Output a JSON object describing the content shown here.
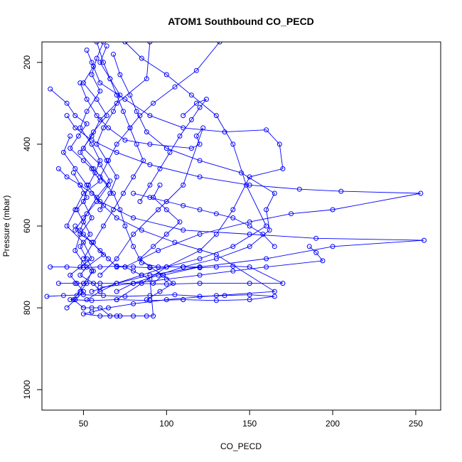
{
  "chart_data": {
    "type": "line",
    "title": "ATOM1 Southbound CO_PECD",
    "xlabel": "CO_PECD",
    "ylabel": "Pressure (mbar)",
    "xlim": [
      25,
      265
    ],
    "ylim": [
      1050,
      150
    ],
    "y_reversed": true,
    "x_ticks": [
      50,
      100,
      150,
      200,
      250
    ],
    "y_ticks": [
      200,
      400,
      600,
      800,
      1000
    ],
    "grid": false,
    "color": "#0000ff",
    "series": [
      {
        "x": [
          62,
          58,
          55,
          60,
          52,
          48,
          55,
          60,
          57,
          53,
          50,
          55,
          48,
          45,
          50,
          55,
          52,
          48,
          44,
          50
        ],
        "y": [
          150,
          190,
          230,
          270,
          320,
          360,
          400,
          440,
          470,
          500,
          540,
          580,
          620,
          660,
          690,
          710,
          740,
          760,
          780,
          800
        ]
      },
      {
        "x": [
          30,
          40,
          45,
          52,
          47,
          42,
          50,
          55,
          60,
          50,
          45,
          40,
          50,
          55,
          48,
          42,
          46,
          50,
          45,
          40
        ],
        "y": [
          265,
          300,
          330,
          350,
          380,
          410,
          440,
          460,
          490,
          520,
          560,
          600,
          640,
          680,
          700,
          720,
          740,
          760,
          780,
          800
        ]
      },
      {
        "x": [
          90,
          88,
          70,
          60,
          55,
          48,
          56,
          65,
          58,
          50,
          45,
          55,
          62,
          52,
          48,
          56,
          60,
          52
        ],
        "y": [
          150,
          240,
          300,
          340,
          380,
          420,
          460,
          500,
          540,
          580,
          610,
          640,
          670,
          700,
          720,
          740,
          760,
          780
        ]
      },
      {
        "x": [
          132,
          118,
          105,
          92,
          84,
          78,
          70,
          65,
          60,
          68,
          72,
          75,
          80,
          85,
          95,
          110,
          120,
          98,
          92
        ],
        "y": [
          150,
          220,
          260,
          300,
          330,
          360,
          400,
          440,
          480,
          520,
          560,
          600,
          650,
          690,
          700,
          700,
          700,
          720,
          740
        ]
      },
      {
        "x": [
          68,
          72,
          78,
          82,
          88,
          100,
          120,
          145,
          165,
          160,
          162,
          150,
          130,
          110,
          95,
          80,
          70
        ],
        "y": [
          180,
          230,
          280,
          320,
          370,
          410,
          440,
          470,
          520,
          560,
          610,
          650,
          680,
          700,
          720,
          740,
          760
        ]
      },
      {
        "x": [
          55,
          60,
          75,
          90,
          110,
          135,
          160,
          168,
          170,
          150,
          140,
          130,
          120,
          100,
          85,
          70
        ],
        "y": [
          200,
          250,
          290,
          330,
          360,
          370,
          365,
          400,
          460,
          480,
          560,
          620,
          660,
          700,
          740,
          780
        ]
      },
      {
        "x": [
          48,
          52,
          58,
          65,
          75,
          90,
          115,
          120,
          118,
          122,
          110,
          95,
          80,
          70,
          60
        ],
        "y": [
          250,
          290,
          330,
          360,
          390,
          400,
          410,
          400,
          380,
          360,
          500,
          560,
          620,
          680,
          720
        ]
      },
      {
        "x": [
          40,
          45,
          55,
          70,
          90,
          120,
          150,
          180,
          205,
          253,
          200,
          175,
          150,
          120,
          95,
          75
        ],
        "y": [
          330,
          360,
          390,
          420,
          450,
          480,
          500,
          510,
          515,
          520,
          560,
          570,
          590,
          620,
          660,
          700
        ]
      },
      {
        "x": [
          42,
          38,
          45,
          52,
          60,
          80,
          110,
          150,
          190,
          255,
          200,
          160,
          120,
          90,
          70,
          55
        ],
        "y": [
          380,
          420,
          460,
          500,
          540,
          580,
          610,
          620,
          630,
          635,
          650,
          680,
          700,
          720,
          740,
          760
        ]
      },
      {
        "x": [
          35,
          40,
          48,
          55,
          62,
          70,
          85,
          105,
          130,
          165,
          130,
          100,
          80,
          65,
          55,
          50,
          60,
          70
        ],
        "y": [
          460,
          480,
          500,
          520,
          550,
          580,
          610,
          640,
          670,
          760,
          770,
          780,
          790,
          800,
          810,
          815,
          820,
          820
        ]
      },
      {
        "x": [
          30,
          40,
          50,
          60,
          70,
          80,
          90,
          100,
          110,
          120,
          130,
          140,
          150,
          170,
          150,
          120,
          100,
          80,
          60,
          45,
          35
        ],
        "y": [
          700,
          700,
          702,
          700,
          698,
          700,
          702,
          700,
          700,
          702,
          700,
          698,
          700,
          740,
          740,
          740,
          742,
          740,
          740,
          740,
          740
        ]
      },
      {
        "x": [
          28,
          38,
          50,
          62,
          75,
          90,
          105,
          120,
          135,
          150,
          165,
          150,
          130,
          110,
          90,
          70,
          55,
          42
        ],
        "y": [
          772,
          770,
          768,
          770,
          772,
          770,
          768,
          772,
          770,
          768,
          772,
          780,
          782,
          780,
          782,
          780,
          782,
          780
        ]
      },
      {
        "x": [
          45,
          50,
          55,
          60,
          65,
          70,
          75,
          80,
          85,
          90,
          92,
          88,
          80,
          72,
          66,
          60,
          55,
          50
        ],
        "y": [
          600,
          620,
          640,
          660,
          680,
          700,
          700,
          710,
          720,
          730,
          820,
          820,
          820,
          820,
          820,
          800,
          800,
          800
        ]
      },
      {
        "x": [
          58,
          62,
          66,
          70,
          74,
          78,
          82,
          86,
          80,
          74,
          68,
          62,
          56,
          50
        ],
        "y": [
          150,
          200,
          240,
          280,
          320,
          360,
          400,
          440,
          480,
          520,
          560,
          600,
          640,
          680
        ]
      },
      {
        "x": [
          52,
          56,
          50,
          58,
          64,
          56,
          50,
          60,
          66,
          58,
          52,
          48
        ],
        "y": [
          170,
          210,
          250,
          290,
          330,
          370,
          410,
          450,
          490,
          530,
          570,
          610
        ]
      },
      {
        "x": [
          75,
          85,
          100,
          115,
          130,
          140,
          148,
          160,
          140,
          120,
          100,
          85,
          70,
          60
        ],
        "y": [
          150,
          190,
          230,
          280,
          330,
          400,
          500,
          600,
          650,
          680,
          700,
          720,
          740,
          760
        ]
      },
      {
        "x": [
          64,
          60,
          66,
          72,
          68,
          62,
          58,
          64,
          70,
          66,
          60
        ],
        "y": [
          160,
          200,
          240,
          280,
          320,
          360,
          400,
          440,
          480,
          520,
          560
        ]
      },
      {
        "x": [
          44,
          48,
          52,
          46,
          50,
          54,
          48,
          52,
          56,
          50,
          46
        ],
        "y": [
          470,
          500,
          530,
          560,
          590,
          620,
          650,
          680,
          710,
          740,
          770
        ]
      },
      {
        "x": [
          96,
          92,
          100,
          108,
          100,
          92,
          84,
          90,
          98,
          104,
          96,
          88
        ],
        "y": [
          500,
          530,
          560,
          590,
          620,
          650,
          680,
          700,
          720,
          740,
          760,
          780
        ]
      },
      {
        "x": [
          110,
          118,
          124,
          120,
          115,
          108,
          102,
          96,
          90,
          84
        ],
        "y": [
          330,
          300,
          290,
          310,
          340,
          380,
          420,
          460,
          500,
          540
        ]
      },
      {
        "x": [
          186,
          190,
          194,
          160,
          140,
          120,
          100,
          80,
          60
        ],
        "y": [
          650,
          665,
          685,
          700,
          710,
          720,
          730,
          740,
          750
        ]
      },
      {
        "x": [
          165,
          158,
          150,
          140,
          130,
          120,
          110,
          100,
          90,
          80
        ],
        "y": [
          650,
          620,
          600,
          580,
          570,
          560,
          550,
          540,
          530,
          520
        ]
      }
    ]
  }
}
